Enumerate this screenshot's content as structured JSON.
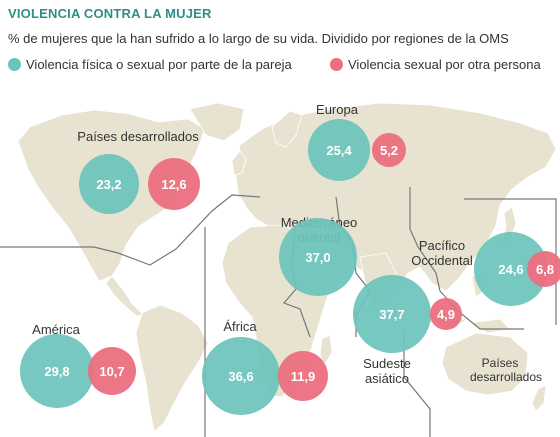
{
  "title": "VIOLENCIA CONTRA LA MUJER",
  "subtitle": "% de mujeres que la han sufrido a lo largo de su vida. Dividido por regiones de la OMS",
  "colors": {
    "partner": "#6cc4bb",
    "non_partner": "#ec6f80",
    "land": "#e7e3d0",
    "ocean": "#ffffff",
    "border": "#777777",
    "label": "#333333",
    "title": "#2f8f86"
  },
  "icons": [
    "teal-circle-icon",
    "pink-circle-icon"
  ],
  "chart_data": {
    "type": "bubble-map",
    "title": "VIOLENCIA CONTRA LA MUJER",
    "subtitle": "% de mujeres que la han sufrido a lo largo de su vida. Dividido por regiones de la OMS",
    "legend": [
      "Violencia física o sexual por parte de la pareja",
      "Violencia sexual por otra persona"
    ],
    "regions": [
      {
        "name": "Países desarrollados",
        "partner": "23,2",
        "non_partner": "12,6"
      },
      {
        "name": "Europa",
        "partner": "25,4",
        "non_partner": "5,2"
      },
      {
        "name": "Mediterráneo oriental",
        "partner": "37,0",
        "non_partner": null
      },
      {
        "name": "Pacífico Occidental",
        "partner": "24,6",
        "non_partner": "6,8"
      },
      {
        "name": "América",
        "partner": "29,8",
        "non_partner": "10,7"
      },
      {
        "name": "África",
        "partner": "36,6",
        "non_partner": "11,9"
      },
      {
        "name": "Sudeste asiático",
        "partner": "37,7",
        "non_partner": "4,9"
      },
      {
        "name": "Países desarrollados",
        "partner": null,
        "non_partner": null
      }
    ]
  }
}
